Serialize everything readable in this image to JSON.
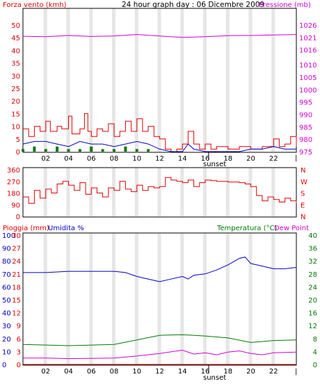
{
  "colors": {
    "wind": "#e00000",
    "pressure": "#d000d0",
    "humidity": "#0000c0",
    "temperature": "#007a00",
    "dewpoint": "#d000d0",
    "rain": "#e00000",
    "title": "#000000",
    "grid_band": "#e6e6e6"
  },
  "chart_data": [
    {
      "type": "line",
      "title": "24 hour graph day : 06 Dicembre 2009",
      "left_label": "Forza vento (kmh)",
      "right_label": "Pressione (mb)",
      "x_ticks": [
        "02",
        "04",
        "06",
        "08",
        "10",
        "12",
        "14",
        "16",
        "18",
        "20",
        "22"
      ],
      "sunset_label": "sunset",
      "sunset_hour": 16.3,
      "end_marker": "|",
      "x_range": [
        0,
        24
      ],
      "left_axis": {
        "ticks": [
          0,
          5,
          10,
          15,
          20,
          25,
          30,
          35,
          40,
          45,
          50
        ],
        "range": [
          0,
          50
        ]
      },
      "right_axis": {
        "ticks": [
          975,
          980,
          985,
          990,
          995,
          1000,
          1005,
          1010,
          1016,
          1021,
          1026
        ],
        "range": [
          975,
          1026
        ]
      },
      "pressure_points": [
        [
          0,
          1021.5
        ],
        [
          2,
          1021.3
        ],
        [
          4,
          1021.8
        ],
        [
          6,
          1021.4
        ],
        [
          8,
          1021.6
        ],
        [
          10,
          1022.2
        ],
        [
          12,
          1021.6
        ],
        [
          14,
          1021.0
        ],
        [
          16,
          1021.3
        ],
        [
          18,
          1021.7
        ],
        [
          20,
          1021.8
        ],
        [
          22,
          1022.0
        ],
        [
          24,
          1022.2
        ]
      ],
      "wind_gust_points": [
        [
          0,
          9
        ],
        [
          0.5,
          6
        ],
        [
          1,
          10
        ],
        [
          1.5,
          8
        ],
        [
          2,
          12
        ],
        [
          2.4,
          8
        ],
        [
          3,
          10
        ],
        [
          3.4,
          9
        ],
        [
          4,
          14
        ],
        [
          4.3,
          7
        ],
        [
          5,
          9
        ],
        [
          5.4,
          15
        ],
        [
          5.7,
          8
        ],
        [
          6,
          6
        ],
        [
          6.5,
          9
        ],
        [
          7,
          8
        ],
        [
          7.5,
          11
        ],
        [
          8,
          6
        ],
        [
          8.5,
          8
        ],
        [
          9,
          12
        ],
        [
          9.5,
          8
        ],
        [
          10,
          13
        ],
        [
          10.5,
          8
        ],
        [
          11,
          10
        ],
        [
          11.5,
          6
        ],
        [
          12,
          5
        ],
        [
          12.5,
          1
        ],
        [
          13,
          0
        ],
        [
          13.5,
          1
        ],
        [
          14,
          3
        ],
        [
          14.5,
          8
        ],
        [
          15,
          3
        ],
        [
          15.5,
          1
        ],
        [
          16,
          3
        ],
        [
          16.5,
          1
        ],
        [
          17,
          2
        ],
        [
          18,
          1
        ],
        [
          19,
          2
        ],
        [
          20,
          1
        ],
        [
          21,
          2
        ],
        [
          22,
          5
        ],
        [
          22.5,
          2
        ],
        [
          23,
          3
        ],
        [
          23.5,
          6
        ],
        [
          24,
          2
        ]
      ],
      "wind_avg_points": [
        [
          0,
          3
        ],
        [
          1,
          4
        ],
        [
          2,
          4
        ],
        [
          3,
          3
        ],
        [
          4,
          2
        ],
        [
          5,
          4
        ],
        [
          6,
          3
        ],
        [
          7,
          3
        ],
        [
          8,
          2
        ],
        [
          9,
          3
        ],
        [
          10,
          4
        ],
        [
          11,
          3
        ],
        [
          12,
          1
        ],
        [
          13,
          0
        ],
        [
          14,
          0
        ],
        [
          14.5,
          3
        ],
        [
          15,
          1
        ],
        [
          16,
          0
        ],
        [
          17,
          0
        ],
        [
          18,
          0
        ],
        [
          19,
          0
        ],
        [
          20,
          1
        ],
        [
          21,
          1
        ],
        [
          22,
          2
        ],
        [
          23,
          1
        ],
        [
          24,
          1
        ]
      ],
      "wind_min_points": [
        [
          0,
          1
        ],
        [
          1,
          2
        ],
        [
          2,
          1
        ],
        [
          3,
          2
        ],
        [
          4,
          1
        ],
        [
          5,
          1
        ],
        [
          6,
          2
        ],
        [
          7,
          1
        ],
        [
          8,
          1
        ],
        [
          9,
          2
        ],
        [
          10,
          1
        ],
        [
          11,
          1
        ],
        [
          12,
          0
        ],
        [
          14,
          0
        ],
        [
          24,
          0
        ]
      ]
    },
    {
      "type": "line",
      "left_label": "",
      "left_axis": {
        "ticks": [
          0,
          90,
          180,
          270,
          360
        ],
        "range": [
          0,
          360
        ]
      },
      "right_axis_labels": [
        "N",
        "W",
        "S",
        "E",
        "N"
      ],
      "direction_points": [
        [
          0,
          150
        ],
        [
          0.5,
          100
        ],
        [
          1,
          200
        ],
        [
          1.5,
          140
        ],
        [
          2,
          210
        ],
        [
          2.5,
          180
        ],
        [
          3,
          250
        ],
        [
          3.5,
          270
        ],
        [
          4,
          240
        ],
        [
          4.5,
          200
        ],
        [
          5,
          260
        ],
        [
          5.5,
          170
        ],
        [
          6,
          220
        ],
        [
          6.5,
          180
        ],
        [
          7,
          150
        ],
        [
          7.5,
          220
        ],
        [
          8,
          200
        ],
        [
          8.5,
          270
        ],
        [
          9,
          210
        ],
        [
          9.5,
          190
        ],
        [
          10,
          240
        ],
        [
          10.5,
          200
        ],
        [
          11,
          230
        ],
        [
          11.5,
          220
        ],
        [
          12,
          230
        ],
        [
          12.5,
          300
        ],
        [
          13,
          280
        ],
        [
          13.5,
          270
        ],
        [
          14,
          260
        ],
        [
          14.5,
          280
        ],
        [
          15,
          230
        ],
        [
          15.5,
          260
        ],
        [
          16,
          280
        ],
        [
          16.5,
          275
        ],
        [
          17,
          270
        ],
        [
          18,
          265
        ],
        [
          19,
          260
        ],
        [
          19.5,
          250
        ],
        [
          20,
          230
        ],
        [
          20.5,
          160
        ],
        [
          21,
          120
        ],
        [
          21.5,
          150
        ],
        [
          22,
          130
        ],
        [
          22.5,
          110
        ],
        [
          23,
          140
        ],
        [
          23.5,
          120
        ],
        [
          24,
          100
        ]
      ]
    },
    {
      "type": "line",
      "left_labels": [
        "Pioggia (mm)",
        "Umidita %"
      ],
      "right_label": "Temperatura (°C)",
      "right_label2": "Dew Point",
      "x_ticks": [
        "02",
        "04",
        "06",
        "08",
        "10",
        "12",
        "14",
        "16",
        "18",
        "20",
        "22"
      ],
      "sunset_label": "sunset",
      "sunset_hour": 16.3,
      "end_marker": "|",
      "x_range": [
        0,
        24
      ],
      "humidity_axis": {
        "ticks": [
          0,
          10,
          20,
          30,
          40,
          50,
          60,
          70,
          80,
          90,
          100
        ],
        "range": [
          0,
          100
        ]
      },
      "rain_axis": {
        "ticks": [
          0,
          3,
          6,
          9,
          12,
          15,
          18,
          21,
          24,
          27,
          30
        ],
        "range": [
          0,
          30
        ]
      },
      "temp_axis": {
        "ticks": [
          0,
          4,
          8,
          12,
          16,
          20,
          24,
          28,
          32,
          36,
          40
        ],
        "range": [
          0,
          40
        ]
      },
      "humidity_points": [
        [
          0,
          71
        ],
        [
          2,
          71
        ],
        [
          4,
          72
        ],
        [
          6,
          72
        ],
        [
          8,
          72
        ],
        [
          9,
          71
        ],
        [
          10,
          68
        ],
        [
          11,
          66
        ],
        [
          12,
          64
        ],
        [
          13,
          66
        ],
        [
          14,
          68
        ],
        [
          14.5,
          66
        ],
        [
          15,
          69
        ],
        [
          16,
          70
        ],
        [
          17,
          73
        ],
        [
          18,
          77
        ],
        [
          19,
          82
        ],
        [
          19.5,
          83
        ],
        [
          20,
          78
        ],
        [
          21,
          76
        ],
        [
          22,
          74
        ],
        [
          23,
          74
        ],
        [
          24,
          75
        ]
      ],
      "temperature_points": [
        [
          0,
          6.2
        ],
        [
          2,
          6.0
        ],
        [
          4,
          5.8
        ],
        [
          6,
          6.0
        ],
        [
          8,
          6.2
        ],
        [
          10,
          7.6
        ],
        [
          12,
          9.0
        ],
        [
          14,
          9.2
        ],
        [
          16,
          8.8
        ],
        [
          18,
          8.2
        ],
        [
          20,
          6.8
        ],
        [
          22,
          7.4
        ],
        [
          24,
          7.6
        ]
      ],
      "dewpoint_points": [
        [
          0,
          2.0
        ],
        [
          2,
          2.0
        ],
        [
          4,
          1.8
        ],
        [
          6,
          1.9
        ],
        [
          8,
          2.0
        ],
        [
          10,
          2.6
        ],
        [
          12,
          3.4
        ],
        [
          14,
          4.4
        ],
        [
          15,
          3.2
        ],
        [
          16,
          3.6
        ],
        [
          17,
          3.0
        ],
        [
          18,
          3.8
        ],
        [
          19,
          4.2
        ],
        [
          20,
          3.4
        ],
        [
          21,
          3.0
        ],
        [
          22,
          3.6
        ],
        [
          24,
          3.8
        ]
      ],
      "rain_points": [
        [
          0,
          0
        ],
        [
          24,
          0
        ]
      ]
    }
  ]
}
